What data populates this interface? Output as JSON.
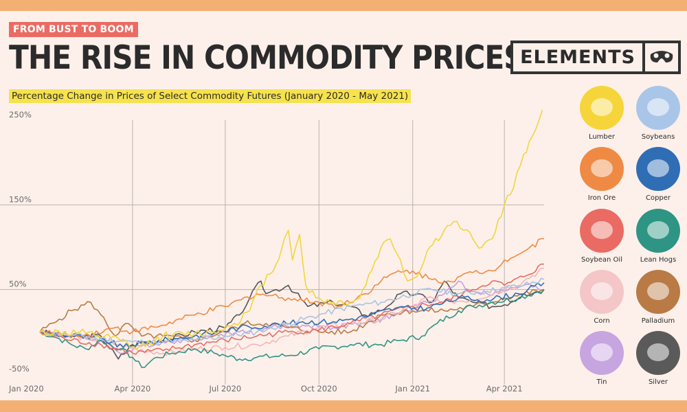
{
  "header": {
    "tag": "FROM BUST TO BOOM",
    "title": "THE RISE IN COMMODITY PRICES",
    "subtitle": "Percentage Change in Prices of Select Commodity Futures (January 2020 - May 2021)",
    "logo": "ELEMENTS"
  },
  "colors": {
    "background": "#fdf0ea",
    "band": "#f3b072",
    "tag": "#ea6b63",
    "highlight": "#f6e24d"
  },
  "chart_data": {
    "type": "line",
    "title": "Percentage Change in Prices of Select Commodity Futures (January 2020 - May 2021)",
    "xlabel": "",
    "ylabel": "",
    "ylim": [
      -50,
      250
    ],
    "xlim": [
      "2020-01-01",
      "2021-05-10"
    ],
    "yticks": [
      "250%",
      "150%",
      "50%",
      "-50%"
    ],
    "ytick_values": [
      250,
      150,
      50,
      -50
    ],
    "xticks": [
      "Jan 2020",
      "Apr 2020",
      "Jul 2020",
      "Oct 2020",
      "Jan 2021",
      "Apr 2021"
    ],
    "xtick_values": [
      "2020-01-01",
      "2020-04-01",
      "2020-07-01",
      "2020-10-01",
      "2021-01-01",
      "2021-04-01"
    ],
    "grid": true,
    "legend_position": "right",
    "series": [
      {
        "name": "Lumber",
        "color": "#f2d53c",
        "points": [
          [
            "2020-01-01",
            0
          ],
          [
            "2020-02-15",
            -2
          ],
          [
            "2020-03-20",
            -10
          ],
          [
            "2020-04-05",
            -20
          ],
          [
            "2020-05-01",
            -5
          ],
          [
            "2020-06-01",
            -2
          ],
          [
            "2020-06-20",
            0
          ],
          [
            "2020-07-10",
            10
          ],
          [
            "2020-07-25",
            25
          ],
          [
            "2020-08-05",
            55
          ],
          [
            "2020-08-20",
            80
          ],
          [
            "2020-08-28",
            110
          ],
          [
            "2020-09-01",
            120
          ],
          [
            "2020-09-05",
            85
          ],
          [
            "2020-09-12",
            115
          ],
          [
            "2020-09-18",
            55
          ],
          [
            "2020-09-28",
            40
          ],
          [
            "2020-10-15",
            35
          ],
          [
            "2020-11-01",
            35
          ],
          [
            "2020-11-10",
            40
          ],
          [
            "2020-12-01",
            100
          ],
          [
            "2020-12-10",
            110
          ],
          [
            "2020-12-20",
            85
          ],
          [
            "2020-12-27",
            60
          ],
          [
            "2021-01-05",
            65
          ],
          [
            "2021-01-15",
            95
          ],
          [
            "2021-02-01",
            120
          ],
          [
            "2021-02-10",
            130
          ],
          [
            "2021-02-20",
            120
          ],
          [
            "2021-03-01",
            110
          ],
          [
            "2021-03-10",
            100
          ],
          [
            "2021-03-20",
            110
          ],
          [
            "2021-04-01",
            150
          ],
          [
            "2021-04-10",
            170
          ],
          [
            "2021-04-20",
            210
          ],
          [
            "2021-04-28",
            230
          ],
          [
            "2021-05-05",
            250
          ],
          [
            "2021-05-10",
            275
          ]
        ]
      },
      {
        "name": "Soybeans",
        "color": "#a6c3e3",
        "points": [
          [
            "2020-01-01",
            0
          ],
          [
            "2020-02-01",
            -4
          ],
          [
            "2020-03-01",
            -8
          ],
          [
            "2020-04-01",
            -12
          ],
          [
            "2020-05-01",
            -12
          ],
          [
            "2020-06-01",
            -10
          ],
          [
            "2020-07-01",
            -5
          ],
          [
            "2020-08-01",
            0
          ],
          [
            "2020-09-01",
            10
          ],
          [
            "2020-10-01",
            20
          ],
          [
            "2020-11-01",
            30
          ],
          [
            "2020-12-01",
            35
          ],
          [
            "2021-01-01",
            45
          ],
          [
            "2021-01-20",
            50
          ],
          [
            "2021-02-15",
            45
          ],
          [
            "2021-03-15",
            48
          ],
          [
            "2021-04-01",
            52
          ],
          [
            "2021-04-20",
            55
          ],
          [
            "2021-05-10",
            62
          ]
        ]
      },
      {
        "name": "Iron Ore",
        "color": "#f08a42",
        "points": [
          [
            "2020-01-01",
            0
          ],
          [
            "2020-02-10",
            -5
          ],
          [
            "2020-03-15",
            5
          ],
          [
            "2020-04-01",
            0
          ],
          [
            "2020-05-01",
            8
          ],
          [
            "2020-06-01",
            20
          ],
          [
            "2020-07-01",
            30
          ],
          [
            "2020-08-01",
            45
          ],
          [
            "2020-09-01",
            40
          ],
          [
            "2020-10-01",
            35
          ],
          [
            "2020-10-20",
            30
          ],
          [
            "2020-11-15",
            45
          ],
          [
            "2020-12-01",
            60
          ],
          [
            "2020-12-15",
            70
          ],
          [
            "2021-01-01",
            72
          ],
          [
            "2021-01-20",
            62
          ],
          [
            "2021-02-05",
            60
          ],
          [
            "2021-03-01",
            70
          ],
          [
            "2021-03-20",
            72
          ],
          [
            "2021-04-01",
            85
          ],
          [
            "2021-04-20",
            95
          ],
          [
            "2021-05-10",
            110
          ]
        ]
      },
      {
        "name": "Copper",
        "color": "#2f6db4",
        "points": [
          [
            "2020-01-01",
            0
          ],
          [
            "2020-02-01",
            -5
          ],
          [
            "2020-03-01",
            -8
          ],
          [
            "2020-03-23",
            -18
          ],
          [
            "2020-04-15",
            -12
          ],
          [
            "2020-05-15",
            -8
          ],
          [
            "2020-06-15",
            -2
          ],
          [
            "2020-07-15",
            5
          ],
          [
            "2020-08-15",
            8
          ],
          [
            "2020-09-15",
            12
          ],
          [
            "2020-10-15",
            12
          ],
          [
            "2020-11-15",
            18
          ],
          [
            "2020-12-15",
            28
          ],
          [
            "2021-01-15",
            28
          ],
          [
            "2021-02-15",
            40
          ],
          [
            "2021-03-15",
            38
          ],
          [
            "2021-04-15",
            45
          ],
          [
            "2021-05-10",
            58
          ]
        ]
      },
      {
        "name": "Soybean Oil",
        "color": "#ea6b63",
        "points": [
          [
            "2020-01-01",
            0
          ],
          [
            "2020-02-01",
            -10
          ],
          [
            "2020-03-01",
            -15
          ],
          [
            "2020-04-01",
            -25
          ],
          [
            "2020-05-01",
            -22
          ],
          [
            "2020-06-01",
            -15
          ],
          [
            "2020-07-01",
            -10
          ],
          [
            "2020-08-01",
            -5
          ],
          [
            "2020-09-01",
            0
          ],
          [
            "2020-10-01",
            2
          ],
          [
            "2020-11-01",
            10
          ],
          [
            "2020-12-01",
            20
          ],
          [
            "2021-01-01",
            30
          ],
          [
            "2021-02-01",
            35
          ],
          [
            "2021-03-01",
            50
          ],
          [
            "2021-03-20",
            60
          ],
          [
            "2021-04-01",
            55
          ],
          [
            "2021-04-20",
            65
          ],
          [
            "2021-05-10",
            80
          ]
        ]
      },
      {
        "name": "Lean Hogs",
        "color": "#2e9484",
        "points": [
          [
            "2020-01-01",
            0
          ],
          [
            "2020-01-20",
            -8
          ],
          [
            "2020-02-01",
            -15
          ],
          [
            "2020-02-15",
            -20
          ],
          [
            "2020-03-01",
            -10
          ],
          [
            "2020-03-20",
            -20
          ],
          [
            "2020-04-01",
            -30
          ],
          [
            "2020-04-10",
            -42
          ],
          [
            "2020-04-25",
            -30
          ],
          [
            "2020-05-10",
            -25
          ],
          [
            "2020-06-01",
            -20
          ],
          [
            "2020-06-20",
            -25
          ],
          [
            "2020-07-01",
            -28
          ],
          [
            "2020-07-15",
            -32
          ],
          [
            "2020-08-01",
            -30
          ],
          [
            "2020-09-01",
            -28
          ],
          [
            "2020-10-01",
            -20
          ],
          [
            "2020-11-01",
            -15
          ],
          [
            "2020-12-01",
            -15
          ],
          [
            "2020-12-20",
            -10
          ],
          [
            "2021-01-10",
            -5
          ],
          [
            "2021-01-25",
            10
          ],
          [
            "2021-02-15",
            25
          ],
          [
            "2021-03-01",
            30
          ],
          [
            "2021-03-20",
            35
          ],
          [
            "2021-04-15",
            40
          ],
          [
            "2021-05-10",
            50
          ]
        ]
      },
      {
        "name": "Corn",
        "color": "#f2b6b8",
        "points": [
          [
            "2020-01-01",
            0
          ],
          [
            "2020-02-01",
            -5
          ],
          [
            "2020-03-01",
            -10
          ],
          [
            "2020-04-01",
            -20
          ],
          [
            "2020-05-01",
            -25
          ],
          [
            "2020-06-01",
            -20
          ],
          [
            "2020-07-01",
            -18
          ],
          [
            "2020-08-01",
            -15
          ],
          [
            "2020-09-01",
            -5
          ],
          [
            "2020-10-01",
            5
          ],
          [
            "2020-11-01",
            10
          ],
          [
            "2020-12-01",
            15
          ],
          [
            "2021-01-01",
            30
          ],
          [
            "2021-01-15",
            40
          ],
          [
            "2021-02-01",
            35
          ],
          [
            "2021-03-01",
            38
          ],
          [
            "2021-04-01",
            50
          ],
          [
            "2021-04-20",
            60
          ],
          [
            "2021-05-10",
            75
          ]
        ]
      },
      {
        "name": "Palladium",
        "color": "#b97a46",
        "points": [
          [
            "2020-01-01",
            0
          ],
          [
            "2020-01-20",
            15
          ],
          [
            "2020-02-01",
            25
          ],
          [
            "2020-02-20",
            35
          ],
          [
            "2020-03-01",
            20
          ],
          [
            "2020-03-15",
            -5
          ],
          [
            "2020-03-25",
            10
          ],
          [
            "2020-04-10",
            -5
          ],
          [
            "2020-05-01",
            -5
          ],
          [
            "2020-06-01",
            -10
          ],
          [
            "2020-07-01",
            0
          ],
          [
            "2020-07-20",
            10
          ],
          [
            "2020-08-10",
            10
          ],
          [
            "2020-09-01",
            5
          ],
          [
            "2020-10-01",
            0
          ],
          [
            "2020-11-01",
            0
          ],
          [
            "2020-12-01",
            20
          ],
          [
            "2021-01-01",
            25
          ],
          [
            "2021-02-01",
            25
          ],
          [
            "2021-03-01",
            30
          ],
          [
            "2021-04-01",
            40
          ],
          [
            "2021-04-20",
            45
          ],
          [
            "2021-05-10",
            50
          ]
        ]
      },
      {
        "name": "Tin",
        "color": "#c5a0dc",
        "points": [
          [
            "2020-01-01",
            0
          ],
          [
            "2020-02-01",
            -5
          ],
          [
            "2020-03-01",
            -10
          ],
          [
            "2020-03-23",
            -25
          ],
          [
            "2020-04-15",
            -15
          ],
          [
            "2020-05-15",
            -10
          ],
          [
            "2020-06-15",
            -5
          ],
          [
            "2020-07-15",
            0
          ],
          [
            "2020-08-15",
            5
          ],
          [
            "2020-09-15",
            8
          ],
          [
            "2020-10-15",
            5
          ],
          [
            "2020-11-15",
            10
          ],
          [
            "2020-12-15",
            20
          ],
          [
            "2021-01-15",
            35
          ],
          [
            "2021-02-01",
            45
          ],
          [
            "2021-02-15",
            60
          ],
          [
            "2021-02-25",
            50
          ],
          [
            "2021-03-15",
            45
          ],
          [
            "2021-04-01",
            48
          ],
          [
            "2021-04-20",
            55
          ],
          [
            "2021-05-10",
            50
          ]
        ]
      },
      {
        "name": "Silver",
        "color": "#555555",
        "points": [
          [
            "2020-01-01",
            0
          ],
          [
            "2020-02-01",
            -5
          ],
          [
            "2020-03-01",
            -5
          ],
          [
            "2020-03-18",
            -32
          ],
          [
            "2020-04-01",
            -15
          ],
          [
            "2020-05-01",
            -10
          ],
          [
            "2020-06-01",
            0
          ],
          [
            "2020-07-01",
            5
          ],
          [
            "2020-07-15",
            20
          ],
          [
            "2020-07-25",
            40
          ],
          [
            "2020-08-05",
            60
          ],
          [
            "2020-08-10",
            45
          ],
          [
            "2020-08-20",
            50
          ],
          [
            "2020-09-01",
            55
          ],
          [
            "2020-09-20",
            30
          ],
          [
            "2020-10-15",
            35
          ],
          [
            "2020-11-01",
            30
          ],
          [
            "2020-11-15",
            20
          ],
          [
            "2020-12-01",
            25
          ],
          [
            "2020-12-20",
            45
          ],
          [
            "2021-01-05",
            45
          ],
          [
            "2021-01-20",
            35
          ],
          [
            "2021-02-01",
            60
          ],
          [
            "2021-02-15",
            40
          ],
          [
            "2021-03-01",
            35
          ],
          [
            "2021-03-20",
            30
          ],
          [
            "2021-04-01",
            32
          ],
          [
            "2021-04-20",
            45
          ],
          [
            "2021-05-10",
            50
          ]
        ]
      }
    ]
  },
  "legend": [
    {
      "name": "Lumber",
      "bg": "#f6d53a",
      "icon": "lumber-icon"
    },
    {
      "name": "Soybeans",
      "bg": "#a9c6e8",
      "icon": "soybeans-icon"
    },
    {
      "name": "Iron Ore",
      "bg": "#ef8a44",
      "icon": "iron-ore-icon"
    },
    {
      "name": "Copper",
      "bg": "#2f6db4",
      "icon": "copper-icon"
    },
    {
      "name": "Soybean Oil",
      "bg": "#ea6b63",
      "icon": "soybean-oil-icon"
    },
    {
      "name": "Lean Hogs",
      "bg": "#2e9484",
      "icon": "lean-hogs-icon"
    },
    {
      "name": "Corn",
      "bg": "#f4c6c8",
      "icon": "corn-icon"
    },
    {
      "name": "Palladium",
      "bg": "#b97a46",
      "icon": "palladium-icon"
    },
    {
      "name": "Tin",
      "bg": "#c7a5e0",
      "icon": "tin-icon"
    },
    {
      "name": "Silver",
      "bg": "#5a5a5a",
      "icon": "silver-icon"
    }
  ]
}
